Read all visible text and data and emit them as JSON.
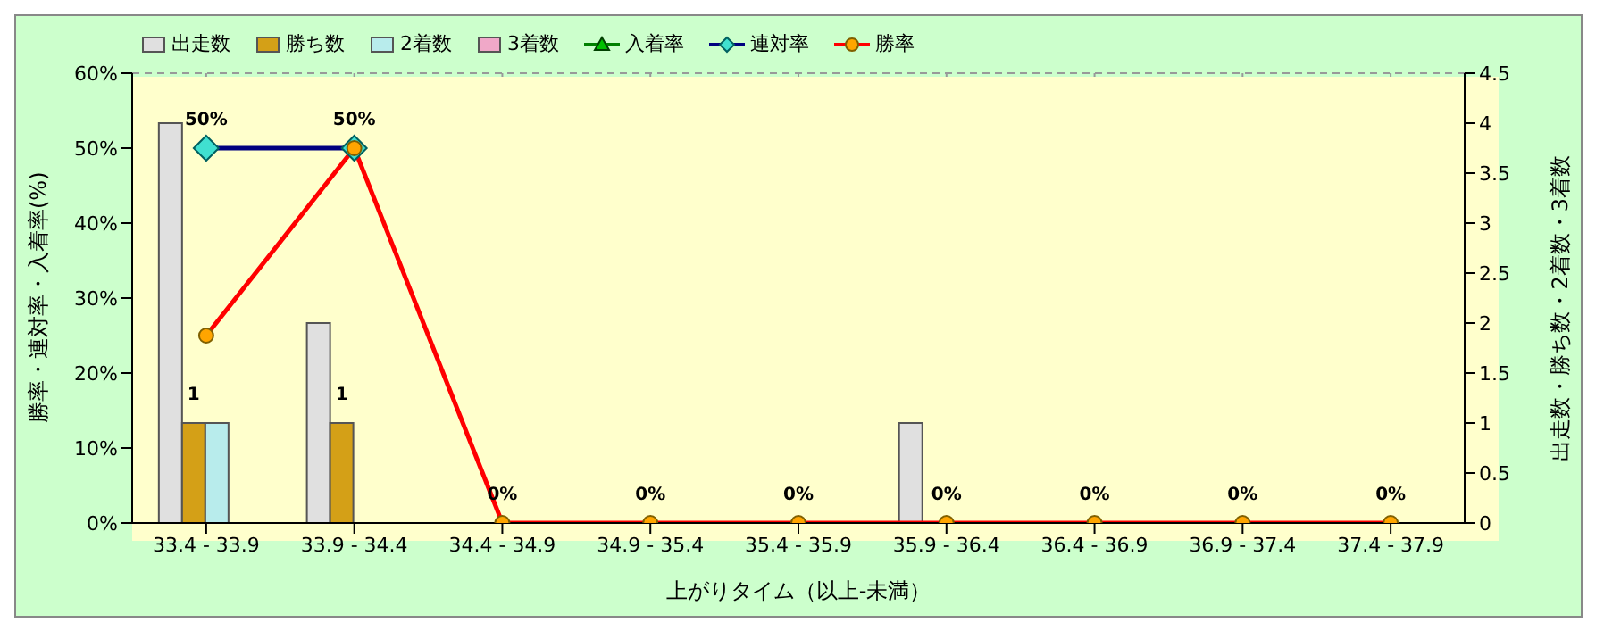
{
  "chart_data": {
    "type": "bar",
    "xlabel": "上がりタイム（以上-未満）",
    "ylabel": "勝率・連対率・入着率(%)",
    "y2label": "出走数・勝ち数・2着数・3着数",
    "categories": [
      "33.4 - 33.9",
      "33.9 - 34.4",
      "34.4 - 34.9",
      "34.9 - 35.4",
      "35.4 - 35.9",
      "35.9 - 36.4",
      "36.4 - 36.9",
      "36.9 - 37.4",
      "37.4 - 37.9"
    ],
    "series": [
      {
        "name": "出走数",
        "axis": "y2",
        "color": "#e0e0e0",
        "values": [
          4,
          2,
          0,
          0,
          0,
          1,
          0,
          0,
          0
        ]
      },
      {
        "name": "勝ち数",
        "axis": "y2",
        "color": "#d4a017",
        "values": [
          1,
          1,
          0,
          0,
          0,
          0,
          0,
          0,
          0
        ],
        "value_labels": [
          "1",
          "1",
          null,
          null,
          null,
          null,
          null,
          null,
          null
        ]
      },
      {
        "name": "2着数",
        "axis": "y2",
        "color": "#b8ecec",
        "values": [
          1,
          0,
          0,
          0,
          0,
          0,
          0,
          0,
          0
        ]
      },
      {
        "name": "3着数",
        "axis": "y2",
        "color": "#f0a8c8",
        "values": [
          0,
          0,
          0,
          0,
          0,
          0,
          0,
          0,
          0
        ]
      },
      {
        "name": "入着率",
        "type": "line",
        "color": "#008000",
        "marker": "triangle",
        "values": [
          null,
          null,
          null,
          null,
          null,
          null,
          null,
          null,
          null
        ]
      },
      {
        "name": "連対率",
        "type": "line",
        "color": "#000080",
        "marker": "diamond",
        "values": [
          50,
          50,
          null,
          null,
          null,
          null,
          null,
          null,
          null
        ],
        "value_labels": [
          "50%",
          null,
          null,
          null,
          null,
          null,
          null,
          null,
          null
        ]
      },
      {
        "name": "勝率",
        "type": "line",
        "color": "#ff0000",
        "marker": "circle",
        "values": [
          25,
          50,
          0,
          0,
          0,
          0,
          0,
          0,
          0
        ],
        "value_labels": [
          null,
          "50%",
          "0%",
          "0%",
          "0%",
          "0%",
          "0%",
          "0%",
          "0%"
        ]
      }
    ],
    "ylim": [
      0,
      60
    ],
    "yticks": [
      {
        "value": 0,
        "label": "0%"
      },
      {
        "value": 10,
        "label": "10%"
      },
      {
        "value": 20,
        "label": "20%"
      },
      {
        "value": 30,
        "label": "30%"
      },
      {
        "value": 40,
        "label": "40%"
      },
      {
        "value": 50,
        "label": "50%"
      },
      {
        "value": 60,
        "label": "60%"
      }
    ],
    "y2lim": [
      0,
      4.5
    ],
    "y2ticks": [
      0,
      0.5,
      1,
      1.5,
      2,
      2.5,
      3,
      3.5,
      4,
      4.5
    ],
    "grid": true,
    "legend": "top left"
  }
}
